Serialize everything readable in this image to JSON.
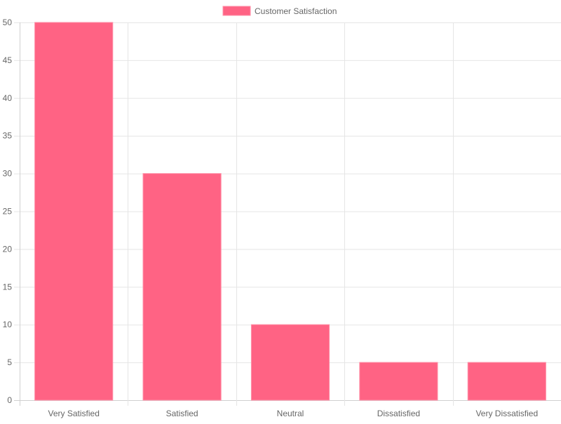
{
  "chart_data": {
    "type": "bar",
    "categories": [
      "Very Satisfied",
      "Satisfied",
      "Neutral",
      "Dissatisfied",
      "Very Dissatisfied"
    ],
    "series": [
      {
        "name": "Customer Satisfaction",
        "values": [
          50,
          30,
          10,
          5,
          5
        ],
        "color": "#ff6384",
        "border_color": "#ff8fa7"
      }
    ],
    "ylim": [
      0,
      50
    ],
    "y_ticks": [
      "0",
      "5",
      "10",
      "15",
      "20",
      "25",
      "30",
      "35",
      "40",
      "45",
      "50"
    ],
    "grid": true,
    "legend_position": "top-center",
    "colors": {
      "grid": "#e5e5e5",
      "axis": "#d0d0d0",
      "tick_text": "#666666"
    }
  }
}
